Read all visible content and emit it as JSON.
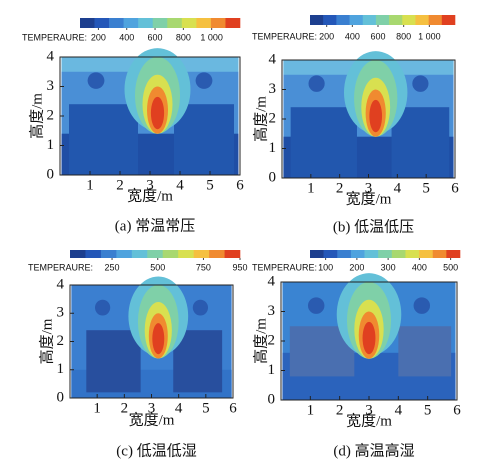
{
  "chart_data": [
    {
      "type": "contour",
      "caption": "(a) 常温常压",
      "xlabel": "宽度/m",
      "ylabel": "高度/m",
      "xlim": [
        0,
        6
      ],
      "ylim": [
        0,
        4
      ],
      "xticks": [
        1,
        2,
        3,
        4,
        5,
        6
      ],
      "yticks": [
        0,
        1,
        2,
        3,
        4
      ],
      "colorbar_label": "TEMPERAURE:",
      "clim": [
        70,
        1200
      ],
      "cticks": [
        200,
        400,
        600,
        800,
        {
          "value": 1000,
          "label": "1 000"
        }
      ]
    },
    {
      "type": "contour",
      "caption": "(b) 低温低压",
      "xlabel": "宽度/m",
      "ylabel": "高度/m",
      "xlim": [
        0,
        6
      ],
      "ylim": [
        0,
        4
      ],
      "xticks": [
        1,
        2,
        3,
        4,
        5,
        6
      ],
      "yticks": [
        0,
        1,
        2,
        3,
        4
      ],
      "colorbar_label": "TEMPERAURE:",
      "clim": [
        70,
        1200
      ],
      "cticks": [
        200,
        400,
        600,
        800,
        {
          "value": 1000,
          "label": "1 000"
        }
      ]
    },
    {
      "type": "contour",
      "caption": "(c) 低温低湿",
      "xlabel": "宽度/m",
      "ylabel": "高度/m",
      "xlim": [
        0,
        6
      ],
      "ylim": [
        0,
        4
      ],
      "xticks": [
        1,
        2,
        3,
        4,
        5,
        6
      ],
      "yticks": [
        0,
        1,
        2,
        3,
        4
      ],
      "colorbar_label": "TEMPERAURE:",
      "clim": [
        20,
        950
      ],
      "cticks": [
        250,
        500,
        750,
        950
      ]
    },
    {
      "type": "contour",
      "caption": "(d) 高温高湿",
      "xlabel": "宽度/m",
      "ylabel": "高度/m",
      "xlim": [
        0,
        6
      ],
      "ylim": [
        0,
        4
      ],
      "xticks": [
        1,
        2,
        3,
        4,
        5,
        6
      ],
      "yticks": [
        0,
        1,
        2,
        3,
        4
      ],
      "colorbar_label": "TEMPERAURE:",
      "clim": [
        50,
        530
      ],
      "cticks": [
        100,
        200,
        300,
        400,
        500
      ]
    }
  ],
  "colormap": [
    "#1d3f8f",
    "#2457b8",
    "#3a7fd0",
    "#4fa3de",
    "#63c0d8",
    "#7fd0a8",
    "#a8d870",
    "#d8e050",
    "#f5c040",
    "#f08a30",
    "#e04020"
  ]
}
